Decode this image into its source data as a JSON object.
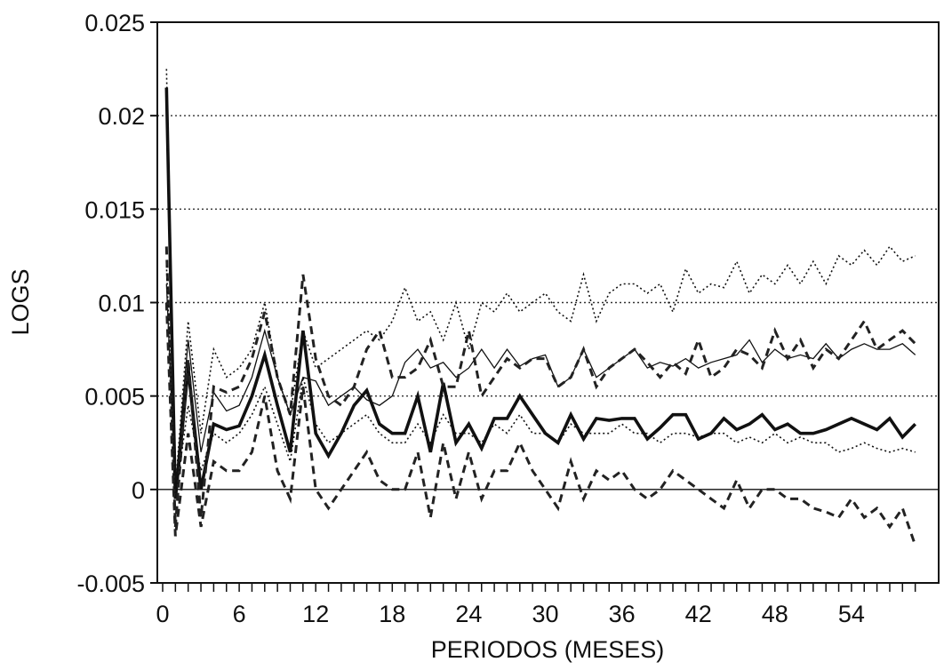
{
  "chart_data": {
    "type": "line",
    "title": "",
    "xlabel": "PERIODOS (MESES)",
    "ylabel": "LOGS",
    "xlim": [
      0,
      59
    ],
    "ylim": [
      -0.005,
      0.025
    ],
    "xticks": [
      0,
      6,
      12,
      18,
      24,
      30,
      36,
      42,
      48,
      54
    ],
    "xtick_labels": [
      "0",
      "6",
      "12",
      "18",
      "24",
      "30",
      "36",
      "42",
      "48",
      "54"
    ],
    "yticks": [
      -0.005,
      0,
      0.005,
      0.01,
      0.015,
      0.02,
      0.025
    ],
    "ytick_labels": [
      "-0.005",
      "0",
      "0.005",
      "0.01",
      "0.015",
      "0.02",
      "0.025"
    ],
    "grid": "horizontal dotted",
    "legend": "none",
    "x": [
      0.3,
      1,
      2,
      3,
      4,
      5,
      6,
      7,
      8,
      9,
      10,
      11,
      12,
      13,
      14,
      15,
      16,
      17,
      18,
      19,
      20,
      21,
      22,
      23,
      24,
      25,
      26,
      27,
      28,
      29,
      30,
      31,
      32,
      33,
      34,
      35,
      36,
      37,
      38,
      39,
      40,
      41,
      42,
      43,
      44,
      45,
      46,
      47,
      48,
      49,
      50,
      51,
      52,
      53,
      54,
      55,
      56,
      57,
      58,
      59
    ],
    "series": [
      {
        "style": "thick-solid",
        "color": "#111111",
        "values": [
          0.0215,
          -0.0005,
          0.0065,
          0.0,
          0.0035,
          0.0032,
          0.0034,
          0.005,
          0.0072,
          0.0045,
          0.002,
          0.0085,
          0.003,
          0.0018,
          0.003,
          0.0045,
          0.0053,
          0.0035,
          0.003,
          0.003,
          0.005,
          0.002,
          0.0057,
          0.0025,
          0.0035,
          0.0022,
          0.0038,
          0.0038,
          0.005,
          0.004,
          0.003,
          0.0025,
          0.004,
          0.0027,
          0.0038,
          0.0037,
          0.0038,
          0.0038,
          0.0027,
          0.0033,
          0.004,
          0.004,
          0.0027,
          0.003,
          0.0038,
          0.0032,
          0.0035,
          0.004,
          0.0032,
          0.0035,
          0.003,
          0.003,
          0.0032,
          0.0035,
          0.0038,
          0.0035,
          0.0032,
          0.0038,
          0.0028,
          0.0035
        ]
      },
      {
        "style": "thin-solid",
        "color": "#111111",
        "values": [
          0.011,
          0.0,
          0.008,
          0.002,
          0.0052,
          0.0042,
          0.0045,
          0.006,
          0.0085,
          0.006,
          0.004,
          0.006,
          0.0058,
          0.0045,
          0.005,
          0.0055,
          0.0048,
          0.0045,
          0.005,
          0.0068,
          0.0075,
          0.0065,
          0.0068,
          0.006,
          0.0065,
          0.0075,
          0.0065,
          0.0075,
          0.0066,
          0.007,
          0.0072,
          0.0055,
          0.006,
          0.0075,
          0.006,
          0.0065,
          0.007,
          0.0075,
          0.0065,
          0.0068,
          0.0066,
          0.007,
          0.0065,
          0.0068,
          0.007,
          0.0072,
          0.008,
          0.0068,
          0.0075,
          0.007,
          0.0072,
          0.007,
          0.0078,
          0.007,
          0.0075,
          0.0078,
          0.0075,
          0.0075,
          0.0078,
          0.0072
        ]
      },
      {
        "style": "dashed",
        "color": "#222222",
        "values": [
          0.013,
          -0.002,
          0.007,
          -0.0015,
          0.0055,
          0.0052,
          0.0055,
          0.007,
          0.0095,
          0.006,
          0.004,
          0.0115,
          0.007,
          0.005,
          0.0045,
          0.0055,
          0.0075,
          0.0085,
          0.006,
          0.006,
          0.0065,
          0.008,
          0.0055,
          0.0055,
          0.0085,
          0.005,
          0.006,
          0.007,
          0.0065,
          0.007,
          0.007,
          0.0055,
          0.006,
          0.0075,
          0.0055,
          0.0065,
          0.007,
          0.0075,
          0.0068,
          0.006,
          0.0068,
          0.0062,
          0.008,
          0.006,
          0.0065,
          0.0075,
          0.0072,
          0.0065,
          0.0085,
          0.007,
          0.008,
          0.0065,
          0.0075,
          0.007,
          0.008,
          0.009,
          0.0075,
          0.008,
          0.0085,
          0.0078
        ]
      },
      {
        "style": "dashed",
        "color": "#222222",
        "values": [
          0.01,
          -0.0025,
          0.003,
          -0.002,
          0.0015,
          0.001,
          0.001,
          0.002,
          0.005,
          0.001,
          -0.0005,
          0.0055,
          0.0,
          -0.001,
          0.0,
          0.001,
          0.002,
          0.0005,
          0.0,
          0.0,
          0.002,
          -0.0015,
          0.0025,
          -0.0005,
          0.002,
          -0.0005,
          0.001,
          0.001,
          0.0025,
          0.001,
          0.0,
          -0.001,
          0.0015,
          -0.0005,
          0.001,
          0.0005,
          0.001,
          0.0,
          -0.0005,
          0.0,
          0.001,
          0.0005,
          0.0,
          -0.0005,
          -0.001,
          0.0005,
          -0.001,
          0.0,
          0.0,
          -0.0005,
          -0.0005,
          -0.001,
          -0.0012,
          -0.0015,
          -0.0005,
          -0.0015,
          -0.001,
          -0.002,
          -0.001,
          -0.003
        ]
      },
      {
        "style": "dotted",
        "color": "#111111",
        "values": [
          0.0225,
          0.0,
          0.009,
          0.003,
          0.0075,
          0.006,
          0.0065,
          0.0075,
          0.01,
          0.006,
          0.004,
          0.0085,
          0.0065,
          0.007,
          0.0075,
          0.008,
          0.0085,
          0.008,
          0.009,
          0.0108,
          0.009,
          0.0095,
          0.008,
          0.01,
          0.0075,
          0.01,
          0.0095,
          0.0105,
          0.0095,
          0.01,
          0.0105,
          0.0095,
          0.009,
          0.0115,
          0.009,
          0.0105,
          0.011,
          0.011,
          0.0105,
          0.011,
          0.0095,
          0.0118,
          0.0105,
          0.011,
          0.0108,
          0.0122,
          0.0105,
          0.0115,
          0.011,
          0.012,
          0.011,
          0.0122,
          0.011,
          0.0125,
          0.012,
          0.0128,
          0.012,
          0.013,
          0.0122,
          0.0125
        ]
      },
      {
        "style": "dotted",
        "color": "#111111",
        "values": [
          0.012,
          -0.0005,
          0.0045,
          0.001,
          0.003,
          0.0025,
          0.003,
          0.004,
          0.0055,
          0.0035,
          0.0015,
          0.006,
          0.0035,
          0.0025,
          0.003,
          0.0035,
          0.004,
          0.003,
          0.0025,
          0.0025,
          0.0035,
          0.0025,
          0.004,
          0.003,
          0.003,
          0.0025,
          0.0035,
          0.003,
          0.004,
          0.003,
          0.003,
          0.0025,
          0.0035,
          0.003,
          0.003,
          0.003,
          0.0035,
          0.003,
          0.003,
          0.0025,
          0.003,
          0.003,
          0.0028,
          0.003,
          0.003,
          0.0025,
          0.0028,
          0.0025,
          0.003,
          0.0025,
          0.0028,
          0.0025,
          0.0025,
          0.002,
          0.0022,
          0.0025,
          0.0022,
          0.002,
          0.0022,
          0.002
        ]
      }
    ]
  }
}
